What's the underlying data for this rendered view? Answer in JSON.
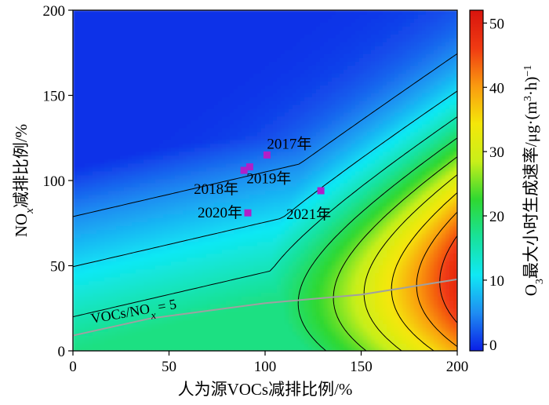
{
  "chart_data": {
    "type": "heatmap",
    "xlabel": "人为源VOCs减排比例/%",
    "ylabel_main": "NO",
    "ylabel_sub": "x",
    "ylabel_rest": "减排比例/%",
    "colorbar_label": "O3最大小时生成速率/μg·(m3·h)−1",
    "colorbar_parts": {
      "a": "O",
      "a_sub": "3",
      "b": "最大小时生成速率/μg·(m",
      "b_sup": "3",
      "c": "·h)",
      "c_sup": "−1"
    },
    "xlim": [
      0,
      200
    ],
    "ylim": [
      0,
      200
    ],
    "clim": [
      -1,
      52
    ],
    "xticks": [
      "0",
      "50",
      "100",
      "150",
      "200"
    ],
    "yticks": [
      "0",
      "50",
      "100",
      "150",
      "200"
    ],
    "cticks": [
      "0",
      "10",
      "20",
      "30",
      "40",
      "50"
    ],
    "grid": false,
    "colormap": [
      "#0a1ee6",
      "#1f8df2",
      "#10e8f4",
      "#18e29a",
      "#2fd831",
      "#c8ef1a",
      "#f4e70a",
      "#fa9a10",
      "#f03a12",
      "#d8140e"
    ],
    "peak": {
      "x": 200,
      "y": 40,
      "value": 51
    },
    "ratio_line": {
      "label_main": "VOCs/NO",
      "label_sub": "x",
      "label_rest": " = 5",
      "points": [
        [
          0,
          9
        ],
        [
          40,
          19
        ],
        [
          100,
          28
        ],
        [
          150,
          33
        ],
        [
          200,
          42
        ]
      ],
      "color": "#a0a0a0"
    },
    "points": [
      {
        "label": "2017年",
        "x": 101,
        "y": 115
      },
      {
        "label": "2018年",
        "x": 89,
        "y": 106
      },
      {
        "label": "2019年",
        "x": 92,
        "y": 108
      },
      {
        "label": "2020年",
        "x": 91,
        "y": 81
      },
      {
        "label": "2021年",
        "x": 129,
        "y": 94
      }
    ],
    "point_color": "#b020c8"
  }
}
